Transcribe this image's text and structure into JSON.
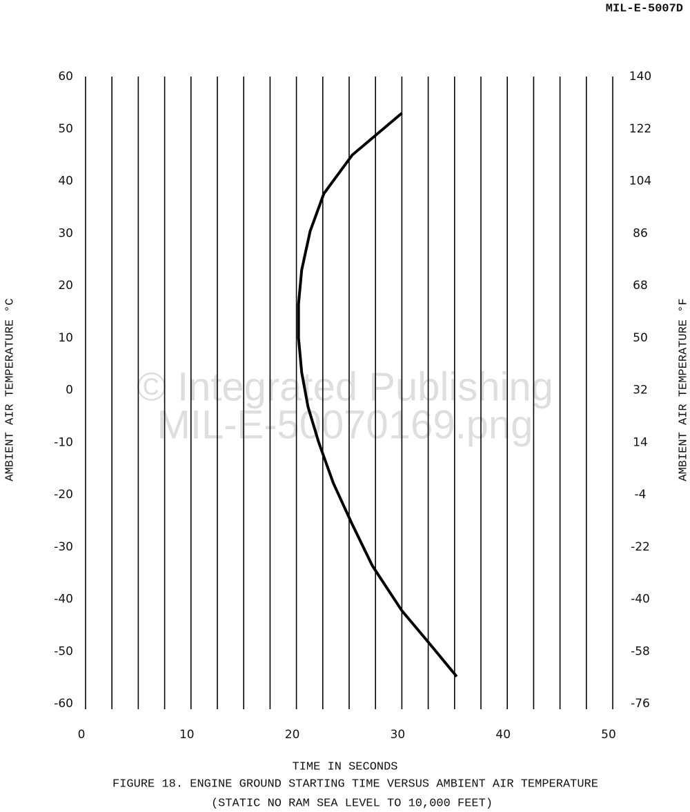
{
  "chart_data": {
    "type": "line",
    "header": "MIL-E-5007D",
    "title": "FIGURE 18. ENGINE GROUND STARTING TIME VERSUS AMBIENT AIR TEMPERATURE",
    "subtitle": "(STATIC NO RAM SEA LEVEL TO 10,000 FEET)",
    "xlabel": "TIME IN SECONDS",
    "ylabel": "AMBIENT AIR TEMPERATURE °C",
    "y2label": "AMBIENT AIR TEMPERATURE °F",
    "watermark": [
      "© Integrated Publishing",
      "MIL-E-50070169.png"
    ],
    "x": [
      30.0,
      25.3,
      22.6,
      21.3,
      20.5,
      20.2,
      20.2,
      20.5,
      21.1,
      22.1,
      23.5,
      25.3,
      27.2,
      30.0,
      32.5,
      35.2
    ],
    "values": [
      53,
      45,
      37.6,
      30.4,
      23,
      16.5,
      10,
      3.4,
      -3.2,
      -9.9,
      -17.8,
      -25.7,
      -33.6,
      -42.2,
      -48.2,
      -54.8
    ],
    "color": "#000000",
    "xlim": [
      0,
      50
    ],
    "xticks": [
      0,
      10,
      20,
      30,
      40,
      50
    ],
    "xgrid": [
      0,
      2.5,
      5,
      7.5,
      10,
      12.5,
      15,
      17.5,
      20,
      22.5,
      25,
      27.5,
      30,
      32.5,
      35,
      37.5,
      40,
      42.5,
      45,
      47.5,
      50
    ],
    "ylim": [
      -60,
      60
    ],
    "yticks": [
      60,
      50,
      40,
      30,
      20,
      10,
      0,
      -10,
      -20,
      -30,
      -40,
      -50,
      -60
    ],
    "y2lim": [
      -76,
      140
    ],
    "y2ticks": [
      140,
      122,
      104,
      86,
      68,
      50,
      32,
      14,
      -4,
      -22,
      -40,
      -58,
      -76
    ]
  }
}
